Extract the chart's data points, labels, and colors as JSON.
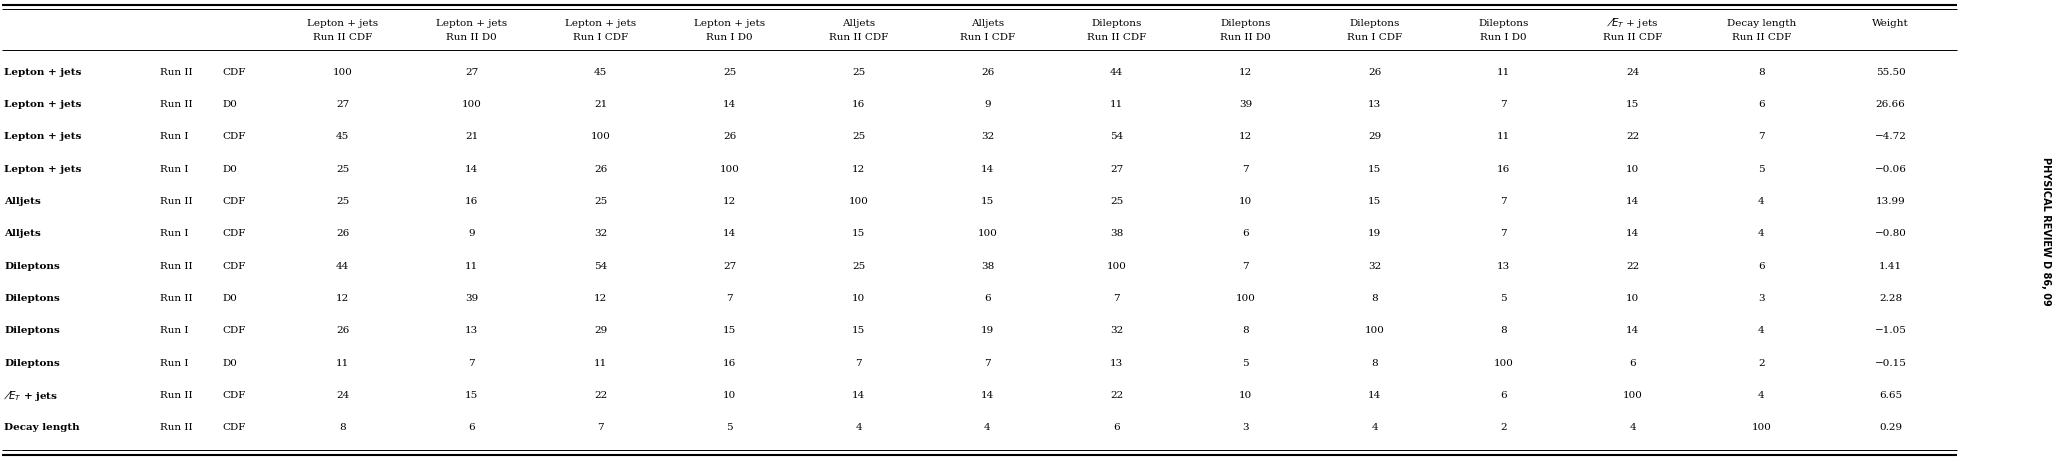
{
  "col_headers_line1": [
    "Lepton + jets",
    "Lepton + jets",
    "Lepton + jets",
    "Lepton + jets",
    "Alljets",
    "Alljets",
    "Dileptons",
    "Dileptons",
    "Dileptons",
    "Dileptons",
    "̸⃒ + jets",
    "Decay length",
    "Weight"
  ],
  "col_headers_line2": [
    "Run II CDF",
    "Run II D0",
    "Run I CDF",
    "Run I D0",
    "Run II CDF",
    "Run I CDF",
    "Run II CDF",
    "Run II D0",
    "Run I CDF",
    "Run I D0",
    "Run II CDF",
    "Run II CDF",
    ""
  ],
  "row_labels": [
    [
      "Lepton + jets",
      "Run II",
      "CDF"
    ],
    [
      "Lepton + jets",
      "Run II",
      "D0"
    ],
    [
      "Lepton + jets",
      "Run I",
      "CDF"
    ],
    [
      "Lepton + jets",
      "Run I",
      "D0"
    ],
    [
      "Alljets",
      "Run II",
      "CDF"
    ],
    [
      "Alljets",
      "Run I",
      "CDF"
    ],
    [
      "Dileptons",
      "Run II",
      "CDF"
    ],
    [
      "Dileptons",
      "Run II",
      "D0"
    ],
    [
      "Dileptons",
      "Run I",
      "CDF"
    ],
    [
      "Dileptons",
      "Run I",
      "D0"
    ],
    [
      "Æ_T + jets",
      "Run II",
      "CDF"
    ],
    [
      "Decay length",
      "Run II",
      "CDF"
    ]
  ],
  "data": [
    [
      "100",
      "27",
      "45",
      "25",
      "25",
      "26",
      "44",
      "12",
      "26",
      "11",
      "24",
      "8",
      "55.50"
    ],
    [
      "27",
      "100",
      "21",
      "14",
      "16",
      "9",
      "11",
      "39",
      "13",
      "7",
      "15",
      "6",
      "26.66"
    ],
    [
      "45",
      "21",
      "100",
      "26",
      "25",
      "32",
      "54",
      "12",
      "29",
      "11",
      "22",
      "7",
      "−4.72"
    ],
    [
      "25",
      "14",
      "26",
      "100",
      "12",
      "14",
      "27",
      "7",
      "15",
      "16",
      "10",
      "5",
      "−0.06"
    ],
    [
      "25",
      "16",
      "25",
      "12",
      "100",
      "15",
      "25",
      "10",
      "15",
      "7",
      "14",
      "4",
      "13.99"
    ],
    [
      "26",
      "9",
      "32",
      "14",
      "15",
      "100",
      "38",
      "6",
      "19",
      "7",
      "14",
      "4",
      "−0.80"
    ],
    [
      "44",
      "11",
      "54",
      "27",
      "25",
      "38",
      "100",
      "7",
      "32",
      "13",
      "22",
      "6",
      "1.41"
    ],
    [
      "12",
      "39",
      "12",
      "7",
      "10",
      "6",
      "7",
      "100",
      "8",
      "5",
      "10",
      "3",
      "2.28"
    ],
    [
      "26",
      "13",
      "29",
      "15",
      "15",
      "19",
      "32",
      "8",
      "100",
      "8",
      "14",
      "4",
      "−1.05"
    ],
    [
      "11",
      "7",
      "11",
      "16",
      "7",
      "7",
      "13",
      "5",
      "8",
      "100",
      "6",
      "2",
      "−0.15"
    ],
    [
      "24",
      "15",
      "22",
      "10",
      "14",
      "14",
      "22",
      "10",
      "14",
      "6",
      "100",
      "4",
      "6.65"
    ],
    [
      "8",
      "6",
      "7",
      "5",
      "4",
      "4",
      "6",
      "3",
      "4",
      "2",
      "4",
      "100",
      "0.29"
    ]
  ],
  "bg_color": "#ffffff",
  "text_color": "#000000",
  "side_text": "PHYSICAL REVIEW D 86, 09",
  "font_size_pt": 7.5,
  "header_font_size_pt": 7.5
}
